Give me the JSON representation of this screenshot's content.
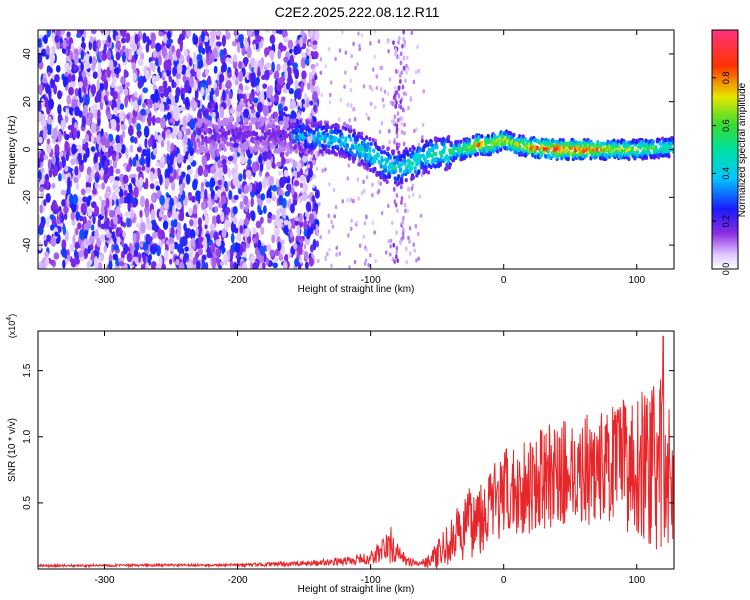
{
  "title": "C2E2.2025.222.08.12.R11",
  "colors": {
    "snr_line": "#e8262a",
    "background": "#ffffff",
    "axis": "#000000"
  },
  "chart_data": [
    {
      "type": "heatmap",
      "panel": "spectrogram",
      "xlabel": "Height of straight line (km)",
      "ylabel": "Frequency (Hz)",
      "xlim": [
        -350,
        128
      ],
      "ylim": [
        -50,
        50
      ],
      "x_ticks": [
        -300,
        -200,
        -100,
        0,
        100
      ],
      "y_ticks": [
        -40,
        -20,
        0,
        20,
        40
      ],
      "colorbar": {
        "label": "Normalized spectral amplitude",
        "range": [
          0.0,
          1.0
        ],
        "ticks": [
          0.0,
          0.2,
          0.4,
          0.6,
          0.8
        ],
        "colormap": "rainbow (white-purple-blue-cyan-green-yellow-red-pink)"
      },
      "ridge": {
        "description": "frequency trace of the strongest signal",
        "x": [
          -160,
          -140,
          -120,
          -100,
          -90,
          -80,
          -70,
          -60,
          -50,
          -40,
          -30,
          -20,
          -10,
          0,
          10,
          20,
          40,
          60,
          80,
          100,
          128
        ],
        "y": [
          6,
          5,
          4,
          -2,
          -6,
          -8,
          -6,
          -3,
          -2,
          -1,
          0,
          2,
          2,
          4,
          2,
          1,
          0,
          0,
          0,
          0,
          1
        ],
        "amplitude": [
          0.35,
          0.45,
          0.45,
          0.5,
          0.5,
          0.5,
          0.55,
          0.5,
          0.55,
          0.6,
          0.65,
          0.85,
          0.8,
          0.75,
          0.75,
          0.85,
          0.95,
          0.9,
          0.75,
          0.7,
          0.6
        ]
      },
      "noise_region": {
        "description": "broadband low-amplitude speckle across all frequencies",
        "x_range": [
          -350,
          -150
        ],
        "amplitude_range": [
          0.05,
          0.3
        ]
      }
    },
    {
      "type": "line",
      "panel": "snr",
      "xlabel": "Height of straight line (km)",
      "ylabel": "SNR (10 * v/v)",
      "y_multiplier_label": "(x10",
      "y_multiplier_exponent": "4",
      "y_multiplier_close": ")",
      "xlim": [
        -350,
        128
      ],
      "ylim": [
        0,
        1.8
      ],
      "x_ticks": [
        -300,
        -200,
        -100,
        0,
        100
      ],
      "y_ticks": [
        0.5,
        1.0,
        1.5
      ],
      "y_tick_labels": [
        "0.5",
        "1.0",
        "1.5"
      ],
      "series": [
        {
          "color": "#e8262a",
          "envelope_x": [
            -350,
            -200,
            -150,
            -120,
            -100,
            -90,
            -85,
            -80,
            -75,
            -70,
            -60,
            -50,
            -40,
            -30,
            -20,
            -10,
            0,
            20,
            40,
            60,
            80,
            100,
            110,
            118,
            122,
            128
          ],
          "envelope_mean": [
            0.025,
            0.03,
            0.04,
            0.06,
            0.08,
            0.15,
            0.18,
            0.12,
            0.08,
            0.05,
            0.05,
            0.1,
            0.2,
            0.3,
            0.4,
            0.48,
            0.55,
            0.65,
            0.72,
            0.75,
            0.78,
            0.8,
            0.78,
            0.75,
            0.72,
            0.7
          ],
          "envelope_amplitude": [
            0.008,
            0.01,
            0.02,
            0.03,
            0.05,
            0.12,
            0.15,
            0.08,
            0.05,
            0.03,
            0.04,
            0.1,
            0.18,
            0.25,
            0.3,
            0.32,
            0.35,
            0.38,
            0.4,
            0.42,
            0.45,
            0.55,
            0.6,
            0.7,
            0.6,
            0.5
          ],
          "peak": {
            "x": 120,
            "y": 1.76
          }
        }
      ]
    }
  ]
}
